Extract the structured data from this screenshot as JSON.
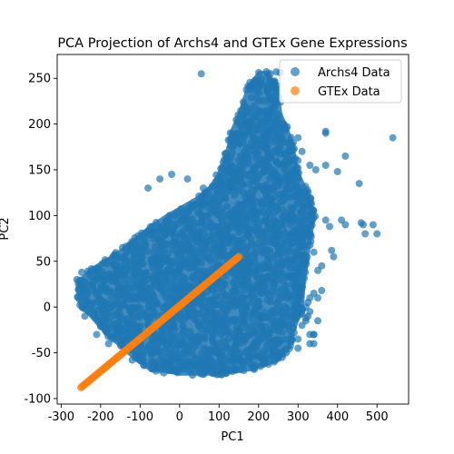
{
  "chart_data": {
    "type": "scatter",
    "title": "PCA Projection of Archs4 and GTEx Gene Expressions",
    "xlabel": "PC1",
    "ylabel": "PC2",
    "xlim": [
      -310,
      580
    ],
    "ylim": [
      -106,
      276
    ],
    "xticks": [
      -300,
      -200,
      -100,
      0,
      100,
      200,
      300,
      400,
      500
    ],
    "yticks": [
      -100,
      -50,
      0,
      50,
      100,
      150,
      200,
      250
    ],
    "grid": false,
    "legend_position": "top-right",
    "series": [
      {
        "name": "Archs4 Data",
        "color": "#1f77b4",
        "alpha": 0.7,
        "cluster": {
          "polygon": [
            [
              -255,
              30
            ],
            [
              -230,
              42
            ],
            [
              -160,
              60
            ],
            [
              -80,
              88
            ],
            [
              -40,
              100
            ],
            [
              0,
              110
            ],
            [
              40,
              120
            ],
            [
              70,
              130
            ],
            [
              90,
              142
            ],
            [
              110,
              160
            ],
            [
              130,
              195
            ],
            [
              150,
              215
            ],
            [
              170,
              242
            ],
            [
              200,
              258
            ],
            [
              220,
              258
            ],
            [
              250,
              242
            ],
            [
              260,
              212
            ],
            [
              290,
              180
            ],
            [
              300,
              152
            ],
            [
              330,
              122
            ],
            [
              345,
              100
            ],
            [
              330,
              60
            ],
            [
              320,
              30
            ],
            [
              315,
              0
            ],
            [
              290,
              -30
            ],
            [
              280,
              -45
            ],
            [
              250,
              -60
            ],
            [
              180,
              -70
            ],
            [
              90,
              -75
            ],
            [
              0,
              -75
            ],
            [
              -60,
              -70
            ],
            [
              -110,
              -60
            ],
            [
              -150,
              -45
            ],
            [
              -190,
              -30
            ],
            [
              -230,
              -10
            ],
            [
              -255,
              0
            ],
            [
              -262,
              20
            ]
          ],
          "count": 2600
        },
        "x": [
          -260,
          -248,
          55,
          55,
          230,
          245,
          255,
          200,
          225,
          245,
          280,
          300,
          300,
          330,
          345,
          370,
          370,
          370,
          400,
          420,
          455,
          465,
          470,
          410,
          420,
          460,
          490,
          500,
          540,
          370,
          380,
          385,
          390,
          360,
          340,
          350,
          330,
          325,
          320,
          360,
          350,
          340,
          330,
          325,
          320,
          330,
          340,
          350,
          340,
          330,
          340,
          300,
          290,
          310,
          320,
          300,
          250,
          260,
          270,
          240,
          160,
          140,
          120,
          -60,
          -40,
          -30,
          -20,
          -10,
          10,
          20,
          30,
          -120,
          -180,
          -210,
          -240,
          -230,
          -20,
          20,
          60,
          100,
          120,
          130,
          140,
          150,
          160,
          170,
          180,
          -50,
          -80,
          270,
          280,
          290,
          300,
          310,
          250,
          240,
          230
        ],
        "y": [
          30,
          38,
          255,
          100,
          255,
          257,
          256,
          240,
          240,
          235,
          100,
          185,
          152,
          155,
          150,
          192,
          190,
          155,
          148,
          165,
          135,
          90,
          80,
          95,
          90,
          92,
          90,
          80,
          185,
          95,
          88,
          62,
          55,
          45,
          60,
          40,
          10,
          5,
          0,
          18,
          10,
          15,
          -5,
          -10,
          -12,
          -30,
          -30,
          -15,
          -40,
          -40,
          -30,
          -35,
          -28,
          -20,
          -15,
          -45,
          -55,
          -55,
          -50,
          -60,
          -65,
          -68,
          -70,
          -70,
          -72,
          -68,
          -66,
          -70,
          -68,
          -65,
          -62,
          -58,
          -40,
          -30,
          -10,
          5,
          145,
          140,
          130,
          125,
          110,
          100,
          95,
          90,
          85,
          80,
          75,
          140,
          130,
          130,
          140,
          150,
          160,
          170,
          210,
          220,
          230
        ]
      },
      {
        "name": "GTEx Data",
        "color": "#ff7f0e",
        "alpha": 0.7,
        "line": {
          "x_start": -250,
          "x_end": 150,
          "y_start": -88,
          "y_end": 55,
          "count": 140
        }
      }
    ]
  }
}
